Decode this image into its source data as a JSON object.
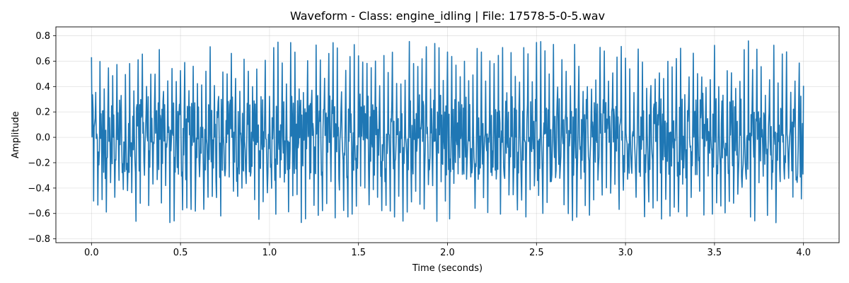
{
  "chart_data": {
    "type": "line",
    "title": "Waveform - Class: engine_idling | File: 17578-5-0-5.wav",
    "xlabel": "Time (seconds)",
    "ylabel": "Amplitude",
    "xlim": [
      -0.2,
      4.2
    ],
    "ylim": [
      -0.83,
      0.87
    ],
    "x_ticks": [
      0.0,
      0.5,
      1.0,
      1.5,
      2.0,
      2.5,
      3.0,
      3.5,
      4.0
    ],
    "x_tick_labels": [
      "0.0",
      "0.5",
      "1.0",
      "1.5",
      "2.0",
      "2.5",
      "3.0",
      "3.5",
      "4.0"
    ],
    "y_ticks": [
      -0.8,
      -0.6,
      -0.4,
      -0.2,
      0.0,
      0.2,
      0.4,
      0.6,
      0.8
    ],
    "y_tick_labels": [
      "−0.8",
      "−0.6",
      "−0.4",
      "−0.2",
      "0.0",
      "0.2",
      "0.4",
      "0.6",
      "0.8"
    ],
    "grid": true,
    "legend": false,
    "line_color": "#1f77b4",
    "series": [
      {
        "x_start": 0.0,
        "x_end": 4.0,
        "peak_max": 0.76,
        "peak_min": -0.75,
        "typical_upper": 0.4,
        "typical_lower": -0.4,
        "approx_periods_per_second": 42
      }
    ]
  }
}
